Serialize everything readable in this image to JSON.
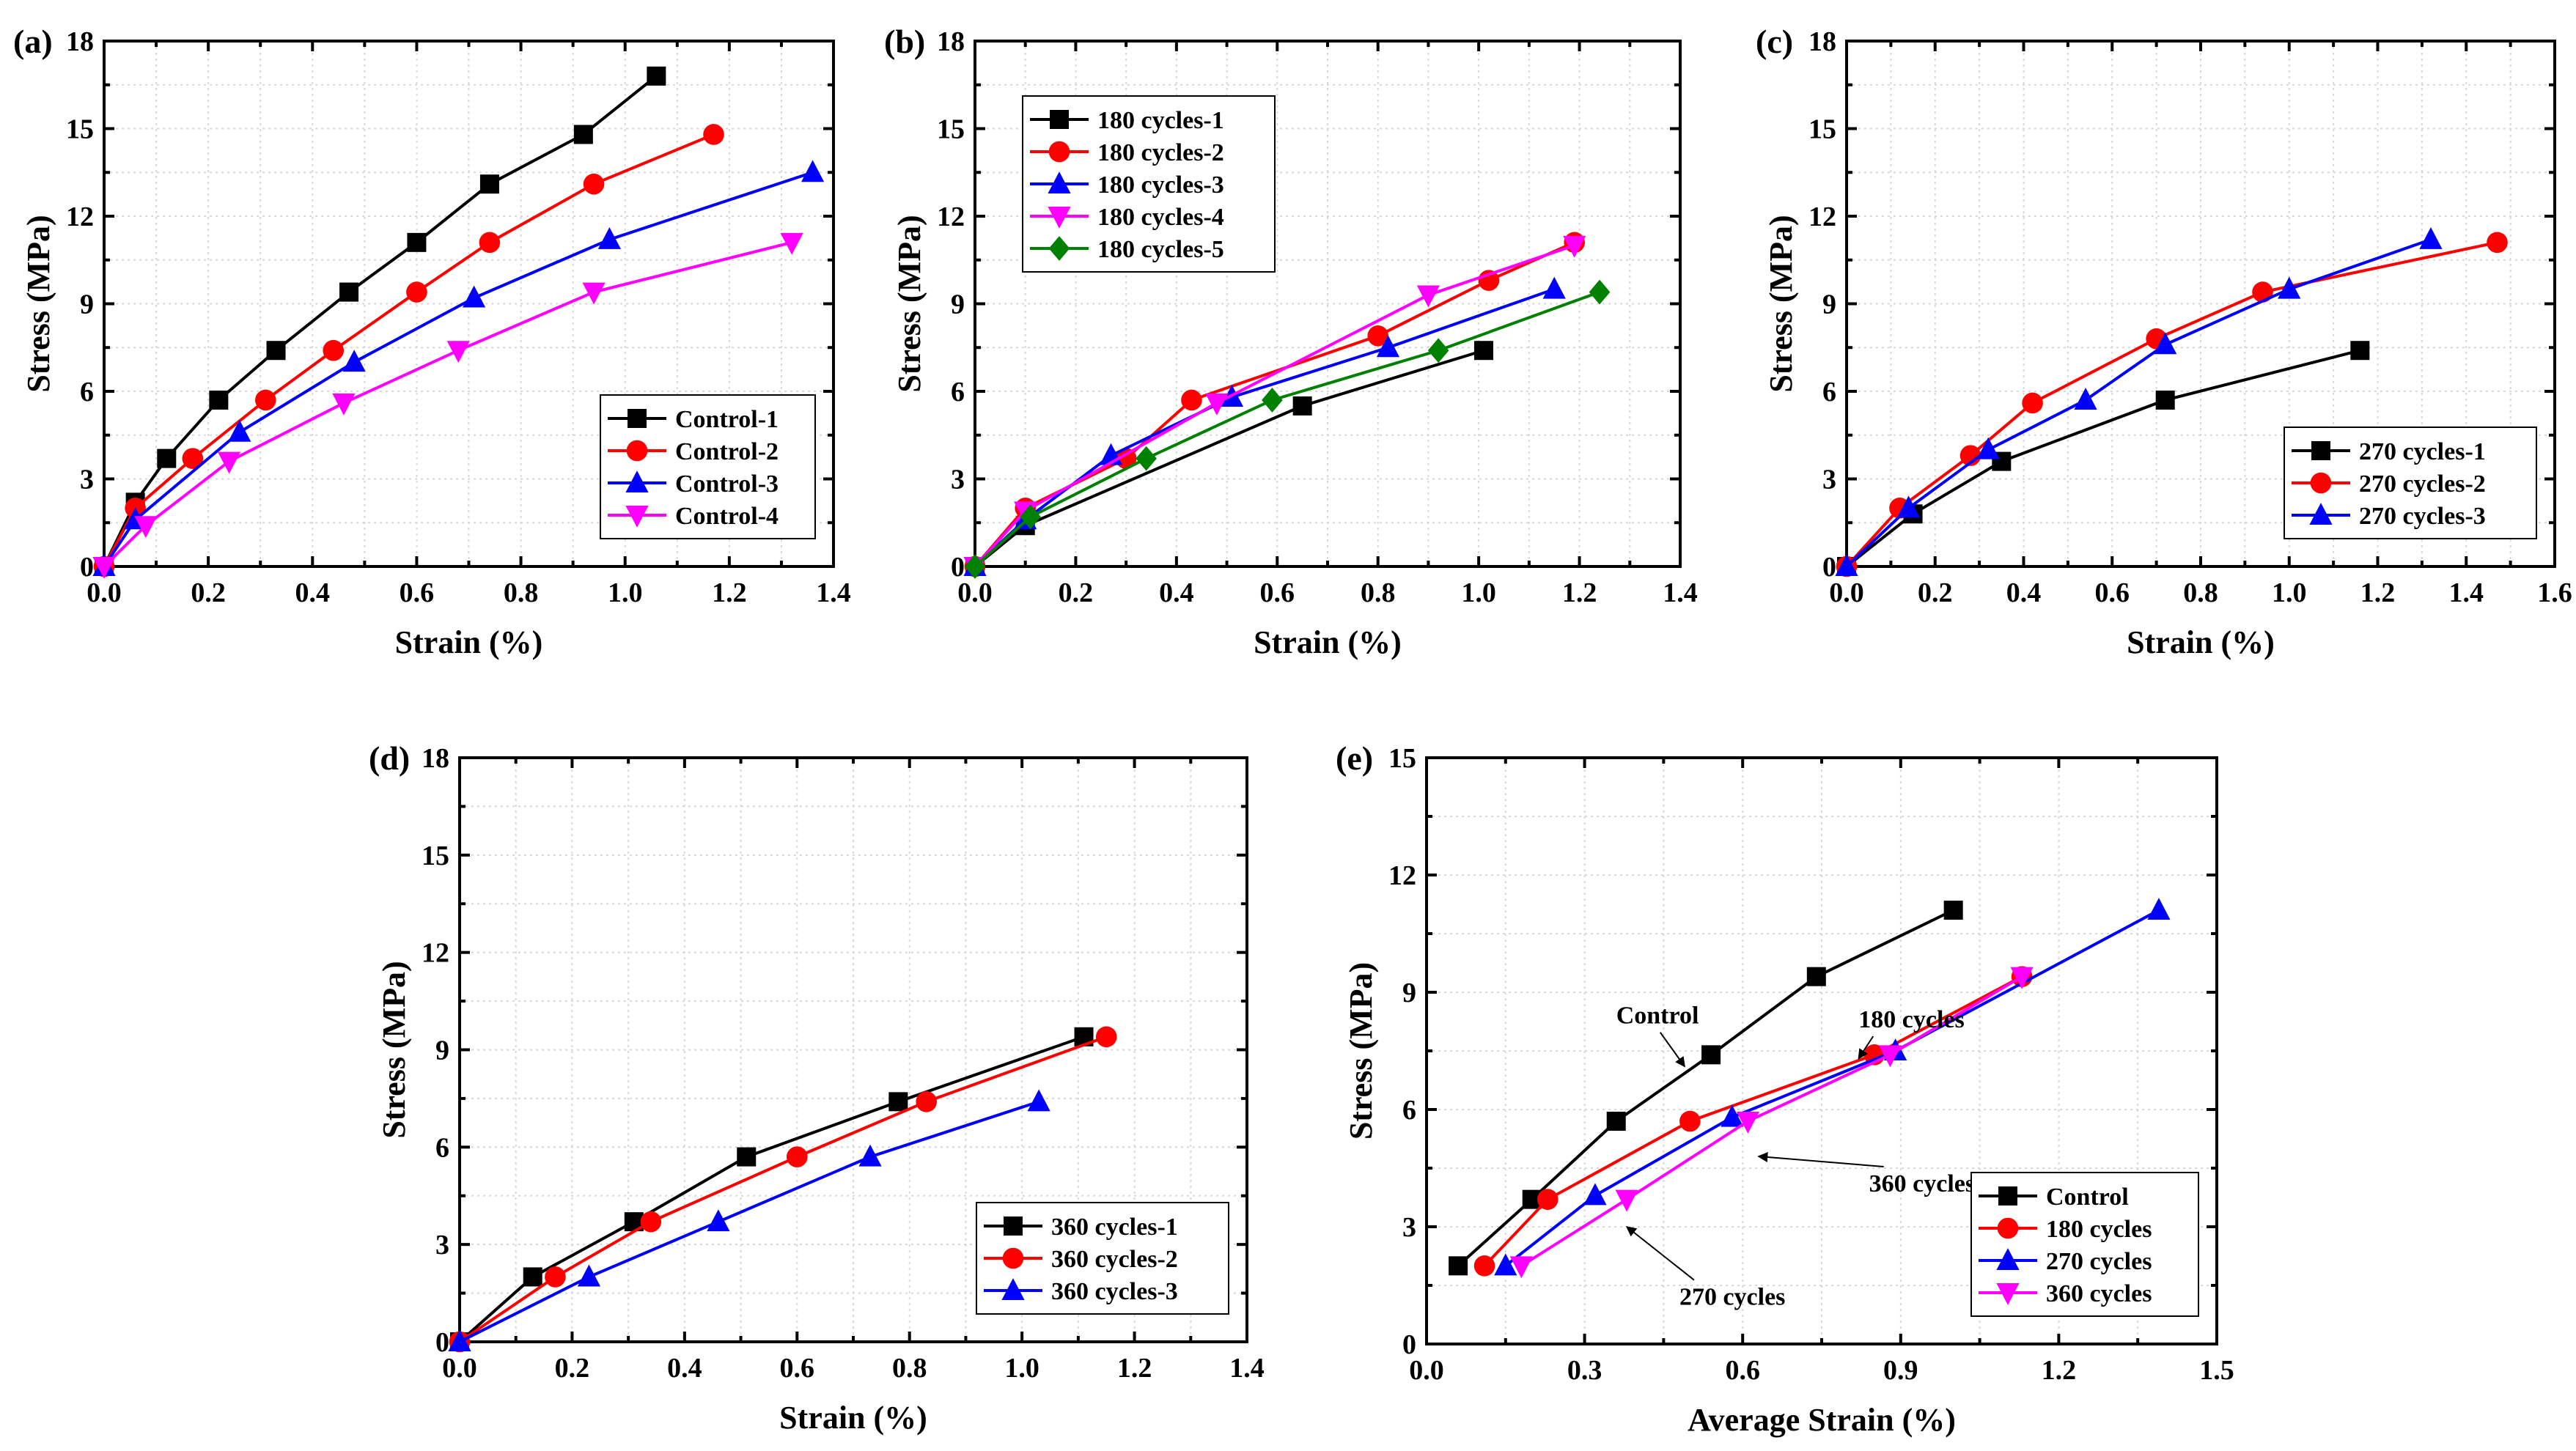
{
  "chart_data": [
    {
      "panel": "(a)",
      "type": "line",
      "xlabel": "Strain (%)",
      "ylabel": "Stress (MPa)",
      "xlim": [
        0,
        1.4
      ],
      "ylim": [
        0,
        18
      ],
      "xticks": [
        "0.0",
        "0.2",
        "0.4",
        "0.6",
        "0.8",
        "1.0",
        "1.2",
        "1.4"
      ],
      "yticks": [
        "0",
        "3",
        "6",
        "9",
        "12",
        "15",
        "18"
      ],
      "legend": "bottom-right",
      "grid": true,
      "series": [
        {
          "name": "Control-1",
          "color": "#000000",
          "marker": "square",
          "x": [
            0,
            0.06,
            0.12,
            0.22,
            0.33,
            0.47,
            0.6,
            0.74,
            0.92,
            1.06
          ],
          "y": [
            0,
            2.2,
            3.7,
            5.7,
            7.4,
            9.4,
            11.1,
            13.1,
            14.8,
            16.8
          ]
        },
        {
          "name": "Control-2",
          "color": "#ff0000",
          "marker": "circle",
          "x": [
            0,
            0.06,
            0.17,
            0.31,
            0.44,
            0.6,
            0.74,
            0.94,
            1.17
          ],
          "y": [
            0,
            2.0,
            3.7,
            5.7,
            7.4,
            9.4,
            11.1,
            13.1,
            14.8
          ]
        },
        {
          "name": "Control-3",
          "color": "#0000ff",
          "marker": "triangle-up",
          "x": [
            0,
            0.06,
            0.26,
            0.48,
            0.71,
            0.97,
            1.36
          ],
          "y": [
            0,
            1.6,
            4.6,
            7.0,
            9.2,
            11.2,
            13.5
          ]
        },
        {
          "name": "Control-4",
          "color": "#ff00ff",
          "marker": "triangle-down",
          "x": [
            0,
            0.08,
            0.24,
            0.46,
            0.68,
            0.94,
            1.32
          ],
          "y": [
            0,
            1.4,
            3.6,
            5.6,
            7.4,
            9.4,
            11.1
          ]
        }
      ]
    },
    {
      "panel": "(b)",
      "type": "line",
      "xlabel": "Strain (%)",
      "ylabel": "Stress (MPa)",
      "xlim": [
        0,
        1.4
      ],
      "ylim": [
        0,
        18
      ],
      "xticks": [
        "0.0",
        "0.2",
        "0.4",
        "0.6",
        "0.8",
        "1.0",
        "1.2",
        "1.4"
      ],
      "yticks": [
        "0",
        "3",
        "6",
        "9",
        "12",
        "15",
        "18"
      ],
      "legend": "top-left",
      "grid": true,
      "series": [
        {
          "name": "180 cycles-1",
          "color": "#000000",
          "marker": "square",
          "x": [
            0,
            0.1,
            0.65,
            1.01
          ],
          "y": [
            0,
            1.4,
            5.5,
            7.4
          ]
        },
        {
          "name": "180 cycles-2",
          "color": "#ff0000",
          "marker": "circle",
          "x": [
            0,
            0.1,
            0.3,
            0.43,
            0.8,
            1.02,
            1.19
          ],
          "y": [
            0,
            2.0,
            3.7,
            5.7,
            7.9,
            9.8,
            11.1
          ]
        },
        {
          "name": "180 cycles-3",
          "color": "#0000ff",
          "marker": "triangle-up",
          "x": [
            0,
            0.1,
            0.27,
            0.51,
            0.82,
            1.15
          ],
          "y": [
            0,
            1.6,
            3.8,
            5.8,
            7.5,
            9.5
          ]
        },
        {
          "name": "180 cycles-4",
          "color": "#ff00ff",
          "marker": "triangle-down",
          "x": [
            0,
            0.1,
            0.48,
            0.9,
            1.19
          ],
          "y": [
            0,
            1.9,
            5.6,
            9.3,
            11.0
          ]
        },
        {
          "name": "180 cycles-5",
          "color": "#008000",
          "marker": "diamond",
          "x": [
            0,
            0.11,
            0.34,
            0.59,
            0.92,
            1.24
          ],
          "y": [
            0,
            1.7,
            3.7,
            5.7,
            7.4,
            9.4
          ]
        }
      ]
    },
    {
      "panel": "(c)",
      "type": "line",
      "xlabel": "Strain (%)",
      "ylabel": "Stress (MPa)",
      "xlim": [
        0,
        1.6
      ],
      "ylim": [
        0,
        18
      ],
      "xticks": [
        "0.0",
        "0.2",
        "0.4",
        "0.6",
        "0.8",
        "1.0",
        "1.2",
        "1.4",
        "1.6"
      ],
      "yticks": [
        "0",
        "3",
        "6",
        "9",
        "12",
        "15",
        "18"
      ],
      "legend": "bottom-right",
      "grid": true,
      "series": [
        {
          "name": "270 cycles-1",
          "color": "#000000",
          "marker": "square",
          "x": [
            0,
            0.15,
            0.35,
            0.72,
            1.16
          ],
          "y": [
            0,
            1.8,
            3.6,
            5.7,
            7.4
          ]
        },
        {
          "name": "270 cycles-2",
          "color": "#ff0000",
          "marker": "circle",
          "x": [
            0,
            0.12,
            0.28,
            0.42,
            0.7,
            0.94,
            1.47
          ],
          "y": [
            0,
            2.0,
            3.8,
            5.6,
            7.8,
            9.4,
            11.1
          ]
        },
        {
          "name": "270 cycles-3",
          "color": "#0000ff",
          "marker": "triangle-up",
          "x": [
            0,
            0.14,
            0.32,
            0.54,
            0.72,
            1.0,
            1.32
          ],
          "y": [
            0,
            2.0,
            4.0,
            5.7,
            7.6,
            9.5,
            11.2
          ]
        }
      ]
    },
    {
      "panel": "(d)",
      "type": "line",
      "xlabel": "Strain (%)",
      "ylabel": "Stress (MPa)",
      "xlim": [
        0,
        1.4
      ],
      "ylim": [
        0,
        18
      ],
      "xticks": [
        "0.0",
        "0.2",
        "0.4",
        "0.6",
        "0.8",
        "1.0",
        "1.2",
        "1.4"
      ],
      "yticks": [
        "0",
        "3",
        "6",
        "9",
        "12",
        "15",
        "18"
      ],
      "legend": "bottom-right",
      "grid": true,
      "series": [
        {
          "name": "360 cycles-1",
          "color": "#000000",
          "marker": "square",
          "x": [
            0,
            0.13,
            0.31,
            0.51,
            0.78,
            1.11
          ],
          "y": [
            0,
            2.0,
            3.7,
            5.7,
            7.4,
            9.4
          ]
        },
        {
          "name": "360 cycles-2",
          "color": "#ff0000",
          "marker": "circle",
          "x": [
            0,
            0.17,
            0.34,
            0.6,
            0.83,
            1.15
          ],
          "y": [
            0,
            2.0,
            3.7,
            5.7,
            7.4,
            9.4
          ]
        },
        {
          "name": "360 cycles-3",
          "color": "#0000ff",
          "marker": "triangle-up",
          "x": [
            0,
            0.23,
            0.46,
            0.73,
            1.03
          ],
          "y": [
            0,
            2.0,
            3.7,
            5.7,
            7.4
          ]
        }
      ]
    },
    {
      "panel": "(e)",
      "type": "line",
      "xlabel": "Average Strain (%)",
      "ylabel": "Stress (MPa)",
      "xlim": [
        0,
        1.5
      ],
      "ylim": [
        0,
        15
      ],
      "xticks": [
        "0.0",
        "0.3",
        "0.6",
        "0.9",
        "1.2",
        "1.5"
      ],
      "yticks": [
        "0",
        "3",
        "6",
        "9",
        "12",
        "15"
      ],
      "legend": "bottom-right",
      "grid": true,
      "series": [
        {
          "name": "Control",
          "color": "#000000",
          "marker": "square",
          "x": [
            0.06,
            0.2,
            0.36,
            0.54,
            0.74,
            1.0
          ],
          "y": [
            2.0,
            3.7,
            5.7,
            7.4,
            9.4,
            11.1
          ]
        },
        {
          "name": "180 cycles",
          "color": "#ff0000",
          "marker": "circle",
          "x": [
            0.11,
            0.23,
            0.5,
            0.85,
            1.13
          ],
          "y": [
            2.0,
            3.7,
            5.7,
            7.4,
            9.4
          ]
        },
        {
          "name": "270 cycles",
          "color": "#0000ff",
          "marker": "triangle-up",
          "x": [
            0.15,
            0.32,
            0.58,
            0.89,
            1.39
          ],
          "y": [
            2.0,
            3.8,
            5.8,
            7.5,
            11.1
          ]
        },
        {
          "name": "360 cycles",
          "color": "#ff00ff",
          "marker": "triangle-down",
          "x": [
            0.18,
            0.38,
            0.61,
            0.88,
            1.13
          ],
          "y": [
            2.0,
            3.7,
            5.7,
            7.4,
            9.4
          ]
        }
      ],
      "annotations": [
        {
          "text": "Control",
          "x": 0.36,
          "y": 8.2,
          "ax": 0.49,
          "ay": 7.1
        },
        {
          "text": "180 cycles",
          "x": 0.82,
          "y": 8.1,
          "ax": 0.82,
          "ay": 7.3
        },
        {
          "text": "360 cycles",
          "x": 0.84,
          "y": 3.9,
          "ax": 0.63,
          "ay": 4.8
        },
        {
          "text": "270 cycles",
          "x": 0.48,
          "y": 1.0,
          "ax": 0.38,
          "ay": 3.0
        }
      ]
    }
  ]
}
